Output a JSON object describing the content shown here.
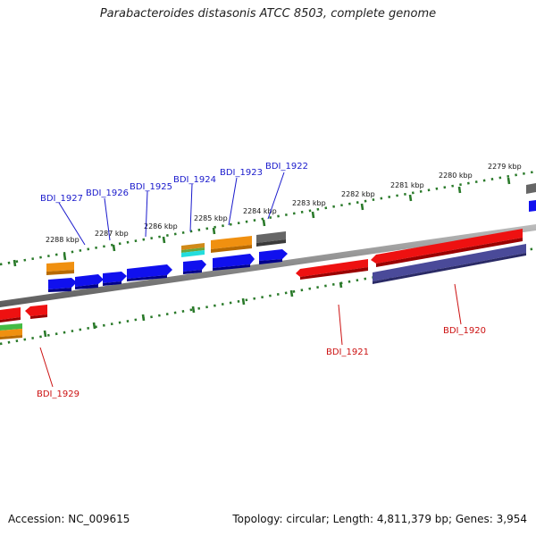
{
  "title": "Parabacteroides distasonis ATCC 8503, complete genome",
  "footer": {
    "accession": "Accession: NC_009615",
    "summary": "Topology: circular; Length: 4,811,379 bp; Genes: 3,954"
  },
  "kbp_labels": [
    "2279 kbp",
    "2280 kbp",
    "2281 kbp",
    "2282 kbp",
    "2283 kbp",
    "2284 kbp",
    "2285 kbp",
    "2286 kbp",
    "2287 kbp",
    "2288 kbp"
  ],
  "gene_labels": {
    "forward": [
      "BDI_1922",
      "BDI_1923",
      "BDI_1924",
      "BDI_1925",
      "BDI_1926",
      "BDI_1927"
    ],
    "reverse": [
      "BDI_1920",
      "BDI_1921",
      "BDI_1929"
    ]
  },
  "colors": {
    "blue_label": "#1a1acc",
    "red_label": "#cc1111",
    "tick": "#2a7a2a",
    "backbone": "#888888",
    "blue_feature": "#1010ee",
    "red_feature": "#ee1111",
    "orange_feature": "#f09010",
    "gray_feature": "#666666",
    "purple_feature": "#4a4a99",
    "cyan_feature": "#22dddd",
    "green_feature": "#44bb44"
  }
}
